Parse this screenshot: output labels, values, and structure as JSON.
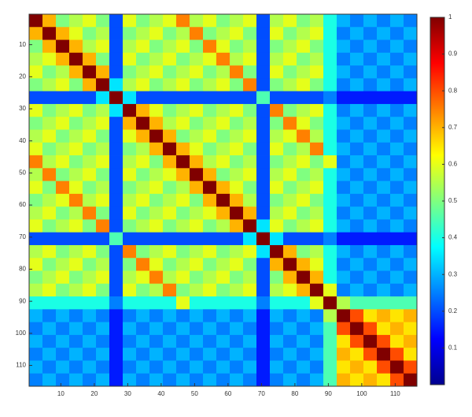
{
  "chart_data": {
    "type": "heatmap",
    "colormap": "jet",
    "y_reversed": true,
    "xlim": [
      0.5,
      116.5
    ],
    "ylim": [
      0.5,
      116.5
    ],
    "xticks": [
      10,
      20,
      30,
      40,
      50,
      60,
      70,
      80,
      90,
      100,
      110
    ],
    "yticks": [
      10,
      20,
      30,
      40,
      50,
      60,
      70,
      80,
      90,
      100,
      110
    ],
    "clim": [
      0,
      1
    ],
    "cticks": [
      0.1,
      0.2,
      0.3,
      0.4,
      0.5,
      0.6,
      0.7,
      0.8,
      0.9,
      1
    ],
    "z": [
      [
        1,
        0.7,
        0.5,
        0.55,
        0.6,
        0.5,
        0.2,
        0.6,
        0.5,
        0.55,
        0.6,
        0.75,
        0.55,
        0.6,
        0.5,
        0.55,
        0.6,
        0.2,
        0.55,
        0.6,
        0.5,
        0.55,
        0.4,
        0.3,
        0.25,
        0.3,
        0.25,
        0.3,
        0.25
      ],
      [
        0.7,
        1,
        0.7,
        0.6,
        0.5,
        0.55,
        0.2,
        0.5,
        0.55,
        0.6,
        0.5,
        0.55,
        0.75,
        0.5,
        0.55,
        0.6,
        0.5,
        0.2,
        0.6,
        0.5,
        0.55,
        0.6,
        0.4,
        0.25,
        0.3,
        0.25,
        0.3,
        0.25,
        0.3
      ],
      [
        0.5,
        0.7,
        1,
        0.7,
        0.55,
        0.6,
        0.2,
        0.55,
        0.6,
        0.5,
        0.55,
        0.6,
        0.5,
        0.75,
        0.6,
        0.5,
        0.55,
        0.2,
        0.5,
        0.55,
        0.6,
        0.5,
        0.4,
        0.3,
        0.25,
        0.3,
        0.25,
        0.3,
        0.25
      ],
      [
        0.55,
        0.6,
        0.7,
        1,
        0.7,
        0.5,
        0.2,
        0.6,
        0.5,
        0.55,
        0.6,
        0.5,
        0.55,
        0.6,
        0.75,
        0.55,
        0.6,
        0.2,
        0.55,
        0.6,
        0.5,
        0.55,
        0.4,
        0.25,
        0.3,
        0.25,
        0.3,
        0.25,
        0.3
      ],
      [
        0.6,
        0.5,
        0.55,
        0.7,
        1,
        0.7,
        0.2,
        0.5,
        0.55,
        0.6,
        0.5,
        0.55,
        0.6,
        0.5,
        0.55,
        0.75,
        0.5,
        0.2,
        0.6,
        0.5,
        0.55,
        0.6,
        0.4,
        0.3,
        0.25,
        0.3,
        0.25,
        0.3,
        0.25
      ],
      [
        0.5,
        0.55,
        0.6,
        0.5,
        0.7,
        1,
        0.35,
        0.55,
        0.6,
        0.5,
        0.55,
        0.6,
        0.5,
        0.55,
        0.6,
        0.5,
        0.75,
        0.2,
        0.5,
        0.55,
        0.6,
        0.5,
        0.4,
        0.25,
        0.3,
        0.25,
        0.3,
        0.25,
        0.3
      ],
      [
        0.2,
        0.2,
        0.2,
        0.2,
        0.2,
        0.35,
        1,
        0.35,
        0.2,
        0.2,
        0.2,
        0.2,
        0.2,
        0.2,
        0.2,
        0.2,
        0.2,
        0.45,
        0.2,
        0.2,
        0.2,
        0.2,
        0.25,
        0.15,
        0.15,
        0.15,
        0.15,
        0.15,
        0.15
      ],
      [
        0.6,
        0.5,
        0.55,
        0.6,
        0.5,
        0.55,
        0.35,
        1,
        0.7,
        0.6,
        0.5,
        0.55,
        0.6,
        0.5,
        0.55,
        0.6,
        0.5,
        0.2,
        0.75,
        0.5,
        0.55,
        0.6,
        0.4,
        0.25,
        0.3,
        0.25,
        0.3,
        0.25,
        0.3
      ],
      [
        0.5,
        0.55,
        0.6,
        0.5,
        0.55,
        0.6,
        0.2,
        0.7,
        1,
        0.7,
        0.55,
        0.6,
        0.5,
        0.55,
        0.6,
        0.5,
        0.55,
        0.2,
        0.5,
        0.75,
        0.6,
        0.5,
        0.4,
        0.3,
        0.25,
        0.3,
        0.25,
        0.3,
        0.25
      ],
      [
        0.55,
        0.6,
        0.5,
        0.55,
        0.6,
        0.5,
        0.2,
        0.6,
        0.7,
        1,
        0.7,
        0.5,
        0.55,
        0.6,
        0.5,
        0.55,
        0.6,
        0.2,
        0.55,
        0.6,
        0.75,
        0.55,
        0.4,
        0.25,
        0.3,
        0.25,
        0.3,
        0.25,
        0.3
      ],
      [
        0.6,
        0.5,
        0.55,
        0.6,
        0.5,
        0.55,
        0.2,
        0.5,
        0.55,
        0.7,
        1,
        0.7,
        0.6,
        0.5,
        0.55,
        0.6,
        0.5,
        0.2,
        0.6,
        0.5,
        0.55,
        0.75,
        0.4,
        0.3,
        0.25,
        0.3,
        0.25,
        0.3,
        0.25
      ],
      [
        0.75,
        0.55,
        0.6,
        0.5,
        0.55,
        0.6,
        0.2,
        0.55,
        0.6,
        0.5,
        0.7,
        1,
        0.7,
        0.55,
        0.6,
        0.5,
        0.55,
        0.2,
        0.5,
        0.55,
        0.6,
        0.5,
        0.6,
        0.25,
        0.3,
        0.25,
        0.3,
        0.25,
        0.3
      ],
      [
        0.55,
        0.75,
        0.5,
        0.55,
        0.6,
        0.5,
        0.2,
        0.6,
        0.5,
        0.55,
        0.6,
        0.7,
        1,
        0.7,
        0.5,
        0.55,
        0.6,
        0.2,
        0.55,
        0.6,
        0.5,
        0.55,
        0.4,
        0.3,
        0.25,
        0.3,
        0.25,
        0.3,
        0.25
      ],
      [
        0.6,
        0.5,
        0.75,
        0.6,
        0.5,
        0.55,
        0.2,
        0.5,
        0.55,
        0.6,
        0.5,
        0.55,
        0.7,
        1,
        0.7,
        0.6,
        0.5,
        0.2,
        0.6,
        0.5,
        0.55,
        0.6,
        0.4,
        0.25,
        0.3,
        0.25,
        0.3,
        0.25,
        0.3
      ],
      [
        0.5,
        0.55,
        0.6,
        0.75,
        0.55,
        0.6,
        0.2,
        0.55,
        0.6,
        0.5,
        0.55,
        0.6,
        0.5,
        0.7,
        1,
        0.7,
        0.55,
        0.2,
        0.5,
        0.55,
        0.6,
        0.5,
        0.4,
        0.3,
        0.25,
        0.3,
        0.25,
        0.3,
        0.25
      ],
      [
        0.55,
        0.6,
        0.5,
        0.55,
        0.75,
        0.5,
        0.2,
        0.6,
        0.5,
        0.55,
        0.6,
        0.5,
        0.55,
        0.6,
        0.7,
        1,
        0.7,
        0.2,
        0.55,
        0.6,
        0.5,
        0.55,
        0.4,
        0.25,
        0.3,
        0.25,
        0.3,
        0.25,
        0.3
      ],
      [
        0.6,
        0.5,
        0.55,
        0.6,
        0.5,
        0.75,
        0.2,
        0.5,
        0.55,
        0.6,
        0.5,
        0.55,
        0.6,
        0.5,
        0.55,
        0.7,
        1,
        0.35,
        0.6,
        0.5,
        0.55,
        0.6,
        0.4,
        0.3,
        0.25,
        0.3,
        0.25,
        0.3,
        0.25
      ],
      [
        0.2,
        0.2,
        0.2,
        0.2,
        0.2,
        0.2,
        0.45,
        0.2,
        0.2,
        0.2,
        0.2,
        0.2,
        0.2,
        0.2,
        0.2,
        0.2,
        0.35,
        1,
        0.35,
        0.2,
        0.2,
        0.2,
        0.25,
        0.15,
        0.15,
        0.15,
        0.15,
        0.15,
        0.15
      ],
      [
        0.55,
        0.6,
        0.5,
        0.55,
        0.6,
        0.5,
        0.2,
        0.75,
        0.5,
        0.55,
        0.6,
        0.5,
        0.55,
        0.6,
        0.5,
        0.55,
        0.6,
        0.35,
        1,
        0.7,
        0.5,
        0.55,
        0.4,
        0.3,
        0.25,
        0.3,
        0.25,
        0.3,
        0.25
      ],
      [
        0.6,
        0.5,
        0.55,
        0.6,
        0.5,
        0.55,
        0.2,
        0.5,
        0.75,
        0.6,
        0.5,
        0.55,
        0.6,
        0.5,
        0.55,
        0.6,
        0.5,
        0.2,
        0.7,
        1,
        0.7,
        0.6,
        0.4,
        0.25,
        0.3,
        0.25,
        0.3,
        0.25,
        0.3
      ],
      [
        0.5,
        0.55,
        0.6,
        0.5,
        0.55,
        0.6,
        0.2,
        0.55,
        0.6,
        0.75,
        0.55,
        0.6,
        0.5,
        0.55,
        0.6,
        0.5,
        0.55,
        0.2,
        0.5,
        0.7,
        1,
        0.7,
        0.4,
        0.3,
        0.25,
        0.3,
        0.25,
        0.3,
        0.25
      ],
      [
        0.55,
        0.6,
        0.5,
        0.55,
        0.6,
        0.5,
        0.2,
        0.6,
        0.5,
        0.55,
        0.75,
        0.5,
        0.55,
        0.6,
        0.5,
        0.55,
        0.6,
        0.2,
        0.55,
        0.6,
        0.7,
        1,
        0.6,
        0.25,
        0.3,
        0.25,
        0.3,
        0.25,
        0.3
      ],
      [
        0.4,
        0.4,
        0.4,
        0.4,
        0.4,
        0.4,
        0.25,
        0.4,
        0.4,
        0.4,
        0.4,
        0.6,
        0.4,
        0.4,
        0.4,
        0.4,
        0.4,
        0.25,
        0.4,
        0.4,
        0.4,
        0.6,
        1,
        0.55,
        0.45,
        0.45,
        0.45,
        0.45,
        0.45
      ],
      [
        0.3,
        0.25,
        0.3,
        0.25,
        0.3,
        0.25,
        0.15,
        0.25,
        0.3,
        0.25,
        0.3,
        0.25,
        0.3,
        0.25,
        0.3,
        0.25,
        0.3,
        0.15,
        0.3,
        0.25,
        0.3,
        0.25,
        0.55,
        1,
        0.8,
        0.65,
        0.7,
        0.65,
        0.7
      ],
      [
        0.25,
        0.3,
        0.25,
        0.3,
        0.25,
        0.3,
        0.15,
        0.3,
        0.25,
        0.3,
        0.25,
        0.3,
        0.25,
        0.3,
        0.25,
        0.3,
        0.25,
        0.15,
        0.25,
        0.3,
        0.25,
        0.3,
        0.45,
        0.8,
        1,
        0.8,
        0.65,
        0.7,
        0.65
      ],
      [
        0.3,
        0.25,
        0.3,
        0.25,
        0.3,
        0.25,
        0.15,
        0.25,
        0.3,
        0.25,
        0.3,
        0.25,
        0.3,
        0.25,
        0.3,
        0.25,
        0.3,
        0.15,
        0.3,
        0.25,
        0.3,
        0.25,
        0.45,
        0.65,
        0.8,
        1,
        0.8,
        0.65,
        0.7
      ],
      [
        0.25,
        0.3,
        0.25,
        0.3,
        0.25,
        0.3,
        0.15,
        0.3,
        0.25,
        0.3,
        0.25,
        0.3,
        0.25,
        0.3,
        0.25,
        0.3,
        0.25,
        0.15,
        0.25,
        0.3,
        0.25,
        0.3,
        0.45,
        0.7,
        0.65,
        0.8,
        1,
        0.8,
        0.65
      ],
      [
        0.3,
        0.25,
        0.3,
        0.25,
        0.3,
        0.25,
        0.15,
        0.25,
        0.3,
        0.25,
        0.3,
        0.25,
        0.3,
        0.25,
        0.3,
        0.25,
        0.3,
        0.15,
        0.3,
        0.25,
        0.3,
        0.25,
        0.45,
        0.65,
        0.7,
        0.65,
        0.8,
        1,
        0.8
      ],
      [
        0.25,
        0.3,
        0.25,
        0.3,
        0.25,
        0.3,
        0.15,
        0.3,
        0.25,
        0.3,
        0.25,
        0.3,
        0.25,
        0.3,
        0.25,
        0.3,
        0.25,
        0.15,
        0.25,
        0.3,
        0.25,
        0.3,
        0.45,
        0.7,
        0.65,
        0.7,
        0.65,
        0.8,
        1
      ]
    ]
  }
}
